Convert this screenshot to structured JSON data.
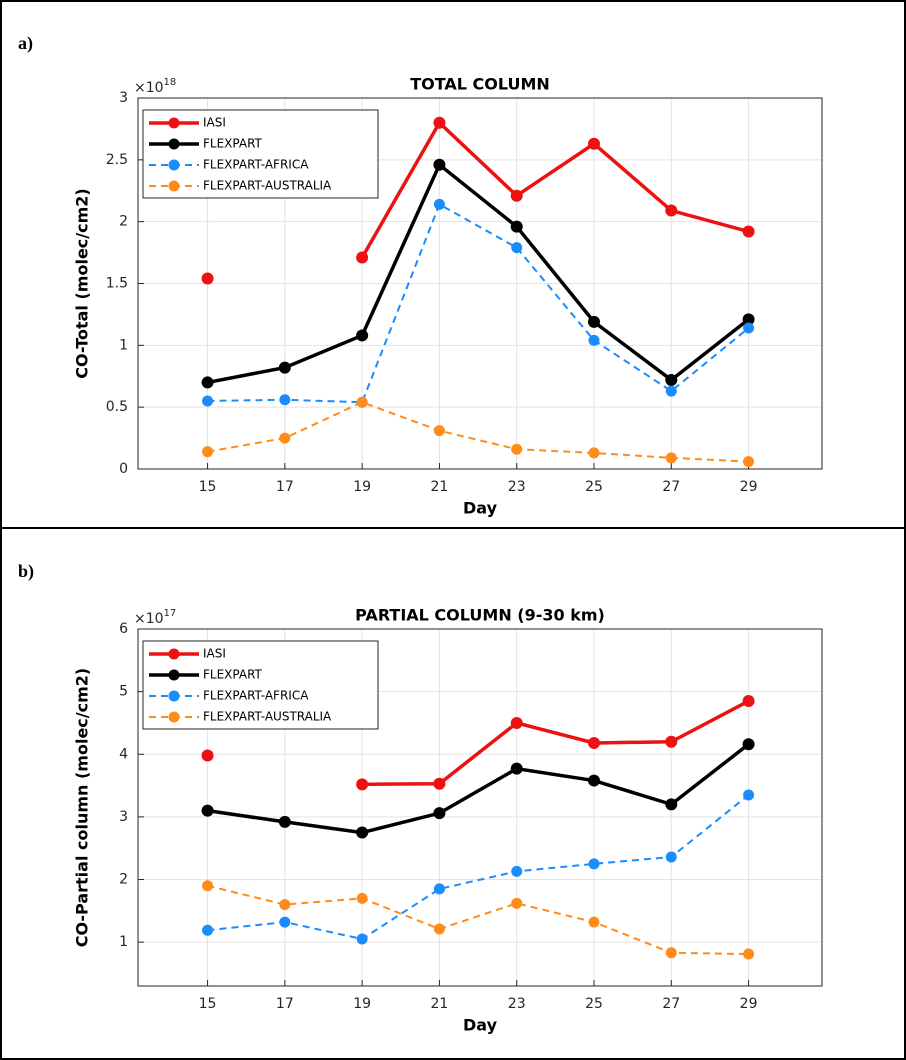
{
  "chart_data": [
    {
      "type": "line",
      "panel_label": "a)",
      "title": "TOTAL COLUMN",
      "xlabel": "Day",
      "ylabel": "CO-Total (molec/cm2)",
      "y_multiplier": "×10",
      "y_exponent": "18",
      "x": [
        15,
        17,
        19,
        21,
        23,
        25,
        27,
        29
      ],
      "xlim": [
        13.2,
        30.9
      ],
      "xticks": [
        15,
        17,
        19,
        21,
        23,
        25,
        27,
        29
      ],
      "ylim": [
        0,
        3
      ],
      "yticks": [
        0,
        0.5,
        1,
        1.5,
        2,
        2.5,
        3
      ],
      "grid": true,
      "legend": "upper left",
      "series": [
        {
          "name": "IASI",
          "color": "#ee1111",
          "style": "solid",
          "values": [
            1.54,
            null,
            1.71,
            2.8,
            2.21,
            2.63,
            2.09,
            1.92
          ]
        },
        {
          "name": "FLEXPART",
          "color": "#000000",
          "style": "solid",
          "values": [
            0.7,
            0.82,
            1.08,
            2.46,
            1.96,
            1.19,
            0.72,
            1.21
          ]
        },
        {
          "name": "FLEXPART-AFRICA",
          "color": "#1a8cff",
          "style": "dashed",
          "values": [
            0.55,
            0.56,
            0.54,
            2.14,
            1.79,
            1.04,
            0.63,
            1.14
          ]
        },
        {
          "name": "FLEXPART-AUSTRALIA",
          "color": "#ff8c1a",
          "style": "dashed",
          "values": [
            0.14,
            0.25,
            0.54,
            0.31,
            0.16,
            0.13,
            0.09,
            0.06
          ]
        }
      ]
    },
    {
      "type": "line",
      "panel_label": "b)",
      "title": "PARTIAL COLUMN (9-30 km)",
      "xlabel": "Day",
      "ylabel": "CO-Partial column (molec/cm2)",
      "y_multiplier": "×10",
      "y_exponent": "17",
      "x": [
        15,
        17,
        19,
        21,
        23,
        25,
        27,
        29
      ],
      "xlim": [
        13.2,
        30.9
      ],
      "xticks": [
        15,
        17,
        19,
        21,
        23,
        25,
        27,
        29
      ],
      "ylim": [
        0.3,
        6
      ],
      "yticks": [
        1,
        2,
        3,
        4,
        5,
        6
      ],
      "grid": true,
      "legend": "upper left",
      "series": [
        {
          "name": "IASI",
          "color": "#ee1111",
          "style": "solid",
          "values": [
            3.98,
            null,
            3.52,
            3.53,
            4.5,
            4.18,
            4.2,
            4.85
          ]
        },
        {
          "name": "FLEXPART",
          "color": "#000000",
          "style": "solid",
          "values": [
            3.1,
            2.92,
            2.75,
            3.06,
            3.77,
            3.58,
            3.2,
            4.16
          ]
        },
        {
          "name": "FLEXPART-AFRICA",
          "color": "#1a8cff",
          "style": "dashed",
          "values": [
            1.19,
            1.32,
            1.05,
            1.85,
            2.13,
            2.25,
            2.36,
            3.35
          ]
        },
        {
          "name": "FLEXPART-AUSTRALIA",
          "color": "#ff8c1a",
          "style": "dashed",
          "values": [
            1.9,
            1.6,
            1.7,
            1.21,
            1.62,
            1.32,
            0.83,
            0.81
          ]
        }
      ]
    }
  ]
}
